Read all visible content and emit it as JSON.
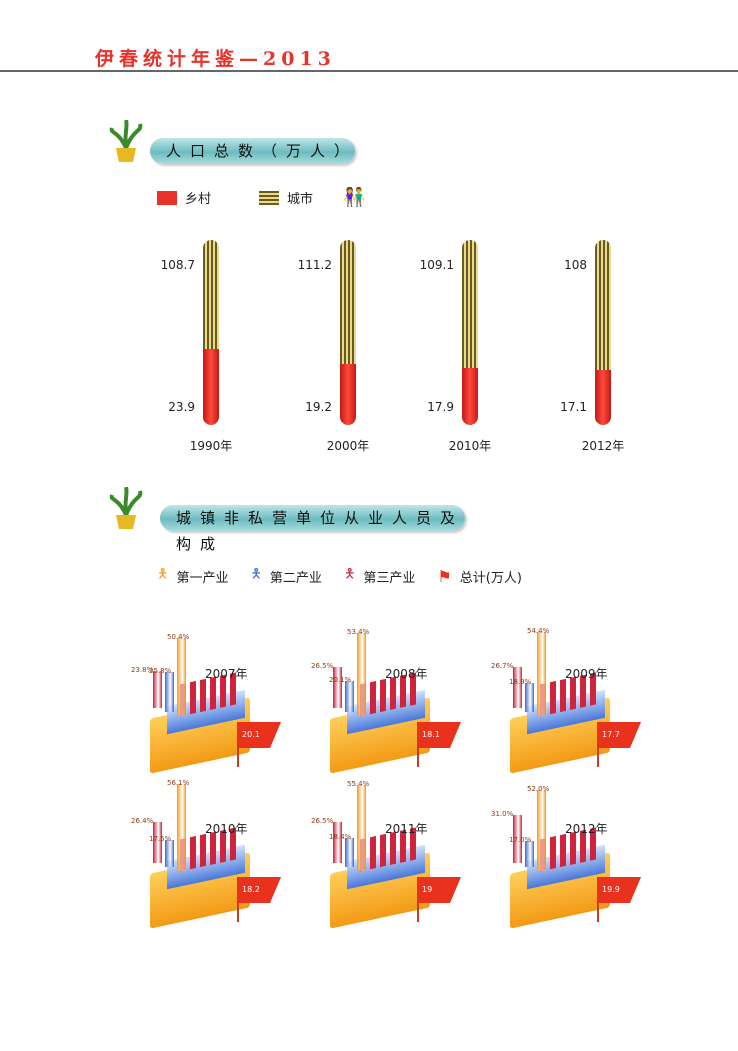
{
  "header": {
    "title": "伊春统计年鉴—2013"
  },
  "section1": {
    "title": "人口总数（万人）",
    "legend": [
      "乡村",
      "城市"
    ],
    "colors": {
      "rural": "#e8322a",
      "urban": "#b8a84a"
    },
    "people_icon": "people-icon"
  },
  "section2": {
    "title": "城镇非私营单位从业人员及构成",
    "legend": [
      "第一产业",
      "第二产业",
      "第三产业",
      "总计(万人)"
    ]
  },
  "chart_data": [
    {
      "type": "bar",
      "title": "人口总数（万人）",
      "categories": [
        "1990年",
        "2000年",
        "2010年",
        "2012年"
      ],
      "series": [
        {
          "name": "城市",
          "values": [
            108.7,
            111.2,
            109.1,
            108
          ]
        },
        {
          "name": "乡村",
          "values": [
            23.9,
            19.2,
            17.9,
            17.1
          ]
        }
      ]
    },
    {
      "type": "bar",
      "title": "城镇非私营单位从业人员及构成",
      "categories": [
        "2007年",
        "2008年",
        "2009年",
        "2010年",
        "2011年",
        "2012年"
      ],
      "series": [
        {
          "name": "red",
          "labels": [
            "23.8%",
            "26.5%",
            "26.7%",
            "26.4%",
            "26.5%",
            "31.0%"
          ],
          "values": [
            23.8,
            26.5,
            26.7,
            26.4,
            26.5,
            31.0
          ],
          "color": "#c8203a"
        },
        {
          "name": "blue",
          "labels": [
            "25.8%",
            "20.1%",
            "18.9%",
            "17.5%",
            "18.4%",
            "17.0%"
          ],
          "values": [
            25.8,
            20.1,
            18.9,
            17.5,
            18.4,
            17.0
          ],
          "color": "#3a6ad0"
        },
        {
          "name": "orange",
          "labels": [
            "50.4%",
            "53.4%",
            "54.4%",
            "56.1%",
            "55.4%",
            "52.0%"
          ],
          "values": [
            50.4,
            53.4,
            54.4,
            56.1,
            55.4,
            52.0
          ],
          "color": "#f59a1a"
        }
      ],
      "totals": [
        "20.1",
        "18.1",
        "17.7",
        "18.2",
        "19",
        "19.9"
      ]
    }
  ]
}
